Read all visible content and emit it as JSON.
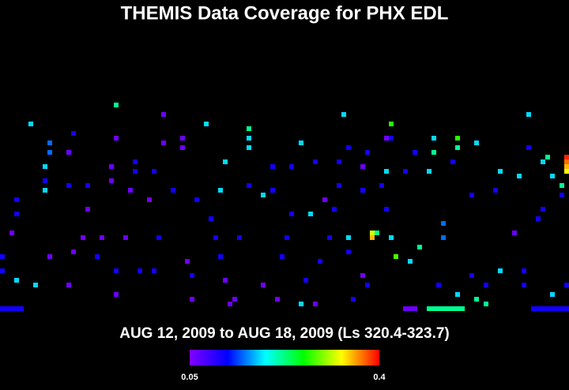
{
  "chart_data": {
    "type": "heatmap",
    "title": "THEMIS Data Coverage for PHX EDL",
    "subtitle": "AUG 12, 2009 to AUG 18, 2009 (Ls 320.4-323.7)",
    "xlim": [
      0,
      120
    ],
    "ylim": [
      0,
      44
    ],
    "clim": [
      0.05,
      0.4
    ],
    "cticks": [
      0.05,
      0.4
    ],
    "colormap": [
      "#8000ff",
      "#0000ff",
      "#00ffff",
      "#00ff00",
      "#ffff00",
      "#ff0000"
    ],
    "x": [
      24,
      6,
      34,
      43,
      72,
      52,
      52,
      52,
      82,
      81,
      82,
      96,
      96,
      111,
      15,
      10,
      10,
      24,
      34,
      38,
      38,
      63,
      73,
      91,
      100,
      111,
      14,
      77,
      87,
      91,
      115,
      114,
      119,
      119,
      119,
      119,
      9,
      9,
      9,
      23,
      23,
      28,
      28,
      32,
      47,
      57,
      57,
      61,
      66,
      71,
      71,
      76,
      81,
      85,
      90,
      95,
      105,
      109,
      116,
      18,
      14,
      27,
      31,
      36,
      41,
      46,
      52,
      55,
      68,
      76,
      80,
      99,
      104,
      118,
      118,
      3,
      3,
      18,
      44,
      45,
      61,
      65,
      70,
      81,
      93,
      93,
      114,
      113,
      78,
      78,
      79,
      73,
      2,
      17,
      21,
      26,
      33,
      50,
      60,
      69,
      82,
      88,
      108,
      73,
      83,
      10,
      15,
      0,
      0,
      20,
      39,
      46,
      59,
      67,
      86,
      105,
      110,
      24,
      29,
      32,
      40,
      76,
      99,
      3,
      7,
      14,
      47,
      55,
      64,
      77,
      92,
      102,
      110,
      119,
      24,
      40,
      49,
      48,
      58,
      63,
      66,
      74,
      96,
      100,
      102,
      116,
      0,
      1,
      2,
      3,
      4,
      85,
      86,
      87,
      90,
      91,
      92,
      93,
      94,
      95,
      96,
      97,
      112,
      113,
      114,
      115,
      116,
      117,
      118,
      119
    ],
    "y": [
      0,
      4,
      2,
      4,
      2,
      5,
      7,
      9,
      4,
      7,
      7,
      7,
      9,
      2,
      6,
      8,
      10,
      7,
      8,
      7,
      9,
      8,
      9,
      7,
      8,
      9,
      10,
      10,
      10,
      10,
      11,
      12,
      11,
      12,
      13,
      14,
      13,
      16,
      18,
      13,
      16,
      12,
      14,
      14,
      12,
      13,
      18,
      13,
      12,
      12,
      17,
      13,
      14,
      14,
      14,
      12,
      14,
      15,
      15,
      17,
      17,
      18,
      20,
      18,
      20,
      18,
      17,
      19,
      20,
      18,
      17,
      19,
      18,
      17,
      19,
      20,
      23,
      22,
      24,
      28,
      23,
      23,
      22,
      22,
      25,
      28,
      22,
      24,
      27,
      28,
      27,
      28,
      27,
      28,
      28,
      28,
      28,
      28,
      28,
      28,
      28,
      30,
      27,
      31,
      32,
      32,
      31,
      32,
      35,
      32,
      33,
      32,
      32,
      33,
      33,
      35,
      35,
      35,
      35,
      35,
      36,
      36,
      36,
      37,
      38,
      38,
      37,
      38,
      37,
      38,
      38,
      38,
      38,
      38,
      40,
      41,
      41,
      42,
      41,
      42,
      42,
      41,
      40,
      41,
      42,
      40,
      43,
      43,
      43,
      43,
      43,
      43,
      43,
      43,
      43,
      43,
      43,
      43,
      43,
      43,
      43,
      43,
      43,
      43,
      43,
      43,
      43,
      43,
      43,
      43
    ],
    "values": [
      0.22,
      0.18,
      0.06,
      0.18,
      0.18,
      0.22,
      0.18,
      0.18,
      0.27,
      0.06,
      0.11,
      0.27,
      0.22,
      0.18,
      0.11,
      0.15,
      0.15,
      0.06,
      0.06,
      0.06,
      0.06,
      0.18,
      0.11,
      0.18,
      0.18,
      0.11,
      0.06,
      0.11,
      0.11,
      0.22,
      0.22,
      0.18,
      0.39,
      0.37,
      0.35,
      0.33,
      0.18,
      0.11,
      0.18,
      0.06,
      0.06,
      0.11,
      0.11,
      0.11,
      0.18,
      0.11,
      0.11,
      0.11,
      0.11,
      0.11,
      0.11,
      0.06,
      0.18,
      0.11,
      0.18,
      0.11,
      0.18,
      0.18,
      0.18,
      0.11,
      0.11,
      0.06,
      0.06,
      0.11,
      0.11,
      0.18,
      0.11,
      0.18,
      0.06,
      0.11,
      0.11,
      0.11,
      0.11,
      0.22,
      0.11,
      0.11,
      0.11,
      0.06,
      0.11,
      0.11,
      0.11,
      0.18,
      0.11,
      0.11,
      0.15,
      0.15,
      0.11,
      0.11,
      0.32,
      0.35,
      0.22,
      0.18,
      0.06,
      0.06,
      0.06,
      0.06,
      0.11,
      0.11,
      0.11,
      0.11,
      0.18,
      0.22,
      0.06,
      0.11,
      0.28,
      0.06,
      0.06,
      0.11,
      0.11,
      0.11,
      0.06,
      0.11,
      0.11,
      0.11,
      0.18,
      0.18,
      0.11,
      0.11,
      0.11,
      0.11,
      0.11,
      0.06,
      0.11,
      0.18,
      0.18,
      0.06,
      0.06,
      0.06,
      0.11,
      0.11,
      0.11,
      0.11,
      0.11,
      0.11,
      0.06,
      0.06,
      0.06,
      0.06,
      0.06,
      0.18,
      0.06,
      0.11,
      0.18,
      0.22,
      0.22,
      0.18,
      0.11,
      0.11,
      0.11,
      0.11,
      0.11,
      0.06,
      0.06,
      0.06,
      0.22,
      0.22,
      0.22,
      0.22,
      0.22,
      0.22,
      0.22,
      0.22,
      0.11,
      0.11,
      0.11,
      0.11,
      0.11,
      0.11,
      0.11,
      0.11
    ]
  }
}
